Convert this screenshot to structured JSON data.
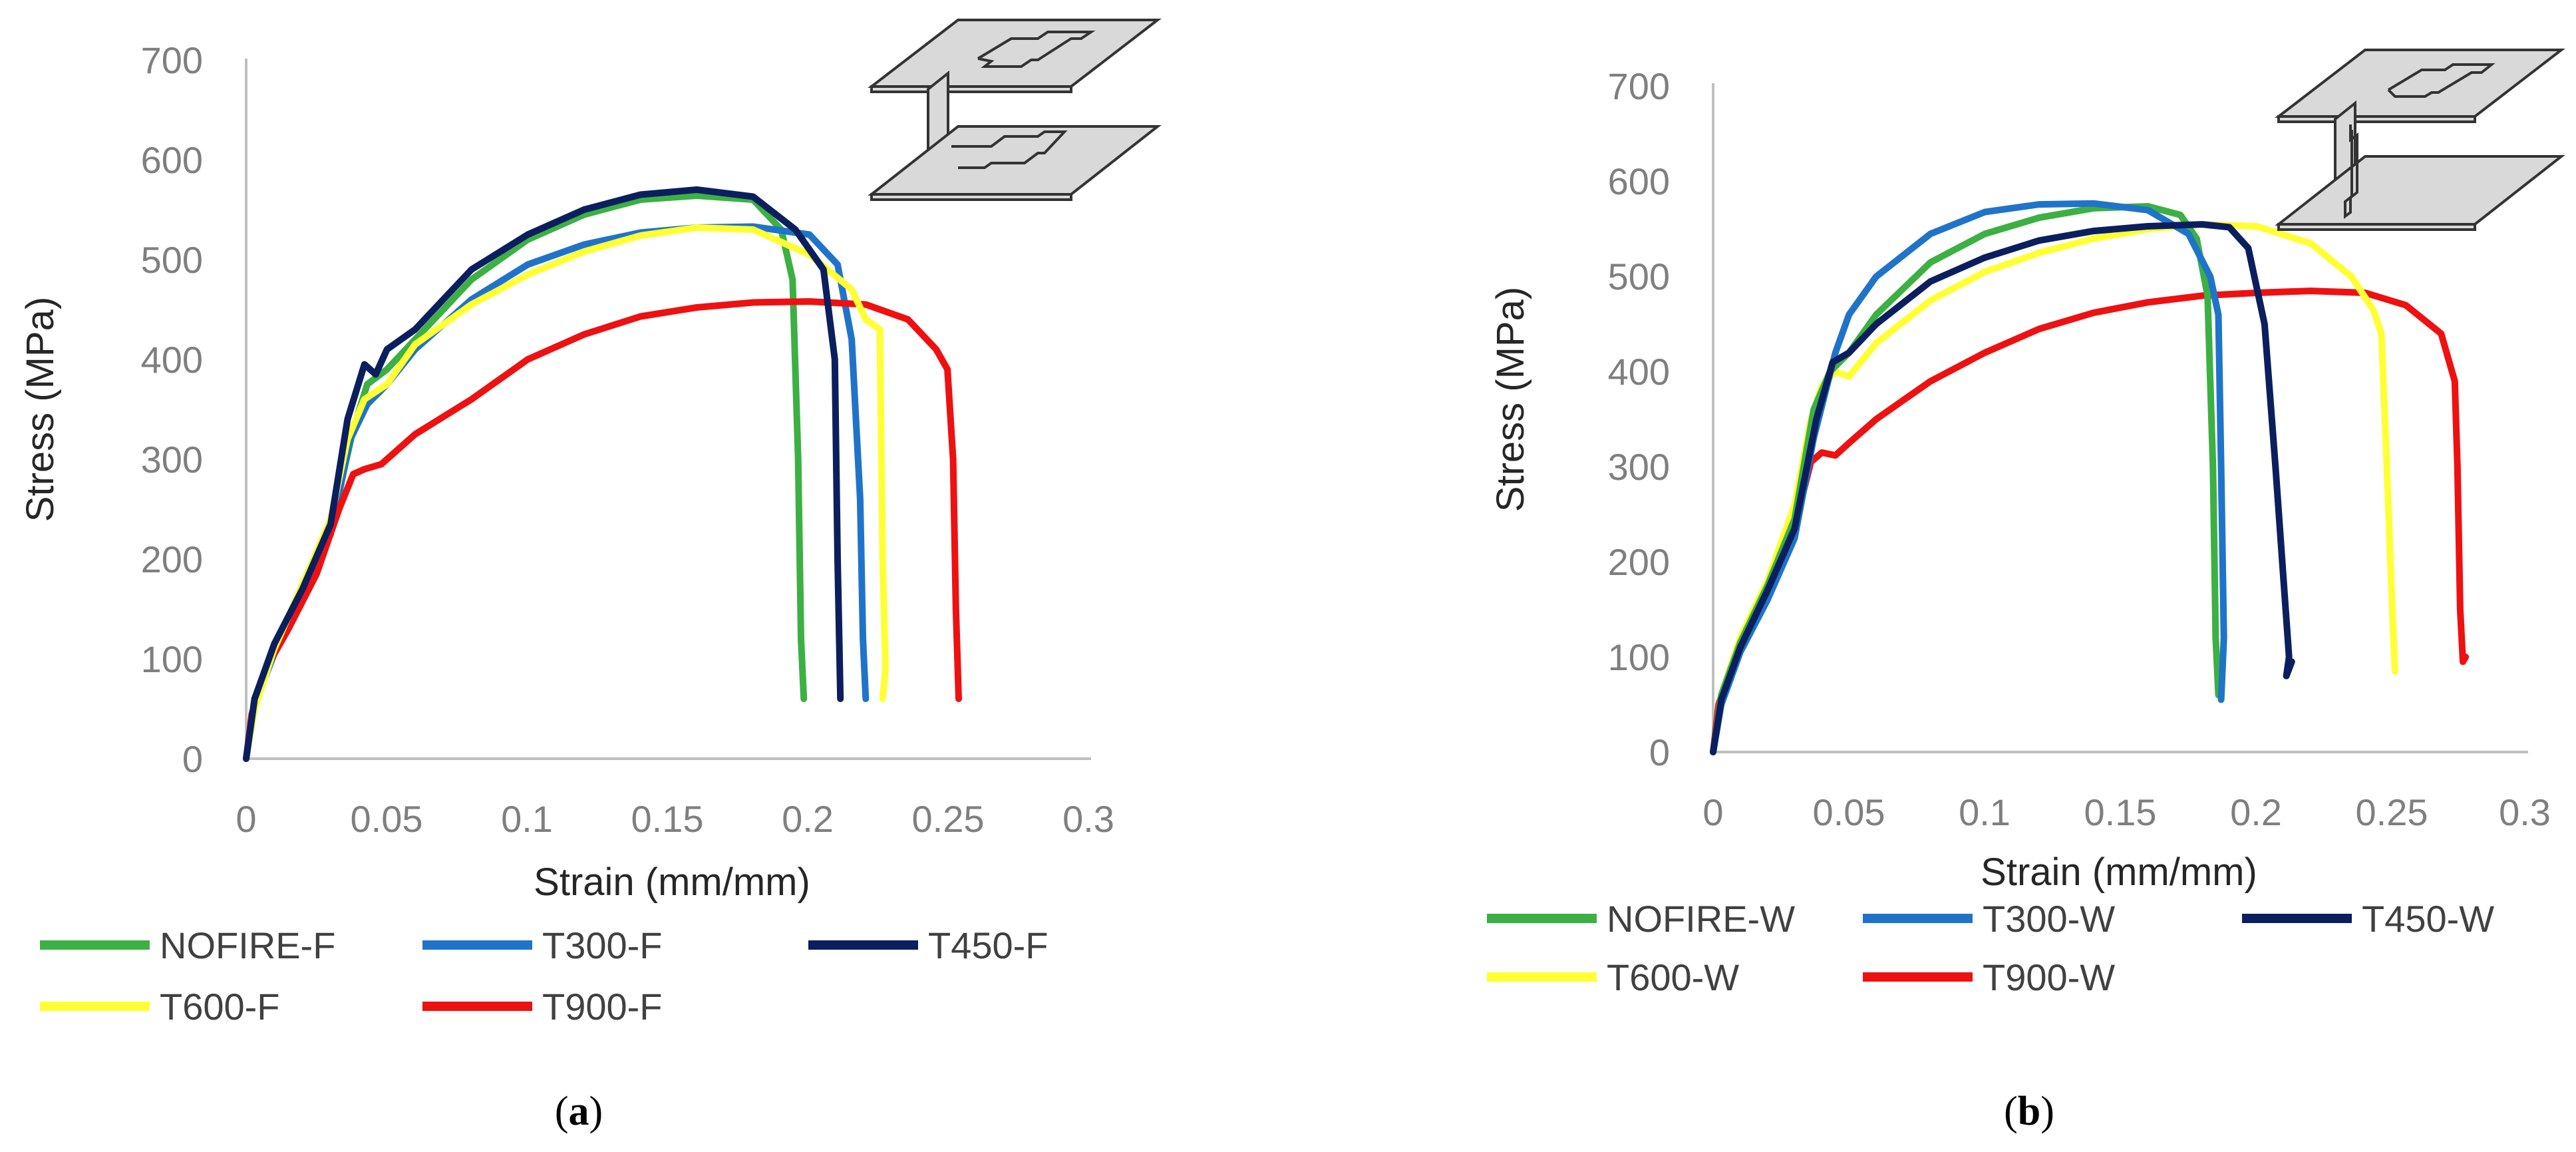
{
  "colors": {
    "NOFIRE": "#3cb043",
    "T300": "#1f74c9",
    "T450": "#0b1f5e",
    "T600": "#ffff33",
    "T900": "#ee1111",
    "axis": "#bfbfbf",
    "tick_text": "#7f7f7f"
  },
  "chart_data": [
    {
      "type": "line",
      "id": "a",
      "caption_letter": "a",
      "xlabel": "Strain (mm/mm)",
      "ylabel": "Stress (MPa)",
      "xlim": [
        0,
        0.3
      ],
      "ylim": [
        0,
        700
      ],
      "x_ticks": [
        0,
        0.05,
        0.1,
        0.15,
        0.2,
        0.25,
        0.3
      ],
      "y_ticks": [
        0,
        100,
        200,
        300,
        400,
        500,
        600,
        700
      ],
      "x_tick_labels": [
        "0",
        "0.05",
        "0.1",
        "0.15",
        "0.2",
        "0.25",
        "0.3"
      ],
      "y_tick_labels": [
        "0",
        "100",
        "200",
        "300",
        "400",
        "500",
        "600",
        "700"
      ],
      "legend_rows": [
        [
          "NOFIRE-F",
          "T300-F",
          "T450-F"
        ],
        [
          "T600-F",
          "T900-F"
        ]
      ],
      "series": [
        {
          "name": "NOFIRE-F",
          "color": "#3cb043",
          "points": [
            [
              0,
              0
            ],
            [
              0.003,
              60
            ],
            [
              0.01,
              110
            ],
            [
              0.02,
              170
            ],
            [
              0.03,
              230
            ],
            [
              0.038,
              330
            ],
            [
              0.043,
              375
            ],
            [
              0.05,
              390
            ],
            [
              0.06,
              420
            ],
            [
              0.08,
              480
            ],
            [
              0.1,
              520
            ],
            [
              0.12,
              545
            ],
            [
              0.14,
              560
            ],
            [
              0.16,
              564
            ],
            [
              0.18,
              560
            ],
            [
              0.19,
              530
            ],
            [
              0.194,
              480
            ],
            [
              0.196,
              300
            ],
            [
              0.197,
              120
            ],
            [
              0.198,
              60
            ]
          ]
        },
        {
          "name": "T300-F",
          "color": "#1f74c9",
          "points": [
            [
              0,
              0
            ],
            [
              0.003,
              55
            ],
            [
              0.01,
              105
            ],
            [
              0.02,
              165
            ],
            [
              0.03,
              225
            ],
            [
              0.037,
              320
            ],
            [
              0.043,
              355
            ],
            [
              0.05,
              375
            ],
            [
              0.06,
              410
            ],
            [
              0.08,
              460
            ],
            [
              0.1,
              495
            ],
            [
              0.12,
              515
            ],
            [
              0.14,
              527
            ],
            [
              0.16,
              532
            ],
            [
              0.18,
              533
            ],
            [
              0.2,
              525
            ],
            [
              0.21,
              495
            ],
            [
              0.215,
              420
            ],
            [
              0.218,
              260
            ],
            [
              0.219,
              120
            ],
            [
              0.22,
              60
            ]
          ]
        },
        {
          "name": "T450-F",
          "color": "#0b1f5e",
          "points": [
            [
              0,
              0
            ],
            [
              0.003,
              60
            ],
            [
              0.01,
              115
            ],
            [
              0.02,
              170
            ],
            [
              0.03,
              235
            ],
            [
              0.036,
              340
            ],
            [
              0.042,
              395
            ],
            [
              0.046,
              385
            ],
            [
              0.05,
              410
            ],
            [
              0.06,
              430
            ],
            [
              0.08,
              490
            ],
            [
              0.1,
              525
            ],
            [
              0.12,
              550
            ],
            [
              0.14,
              565
            ],
            [
              0.16,
              570
            ],
            [
              0.18,
              563
            ],
            [
              0.195,
              530
            ],
            [
              0.205,
              490
            ],
            [
              0.209,
              400
            ],
            [
              0.21,
              200
            ],
            [
              0.211,
              60
            ]
          ]
        },
        {
          "name": "T600-F",
          "color": "#ffff33",
          "points": [
            [
              0,
              0
            ],
            [
              0.003,
              50
            ],
            [
              0.01,
              110
            ],
            [
              0.02,
              175
            ],
            [
              0.03,
              240
            ],
            [
              0.036,
              320
            ],
            [
              0.042,
              360
            ],
            [
              0.05,
              375
            ],
            [
              0.06,
              415
            ],
            [
              0.08,
              455
            ],
            [
              0.1,
              485
            ],
            [
              0.12,
              508
            ],
            [
              0.14,
              524
            ],
            [
              0.16,
              532
            ],
            [
              0.18,
              530
            ],
            [
              0.2,
              505
            ],
            [
              0.215,
              470
            ],
            [
              0.22,
              440
            ],
            [
              0.225,
              430
            ],
            [
              0.226,
              200
            ],
            [
              0.227,
              90
            ],
            [
              0.226,
              60
            ]
          ]
        },
        {
          "name": "T900-F",
          "color": "#ee1111",
          "points": [
            [
              0,
              0
            ],
            [
              0.002,
              45
            ],
            [
              0.008,
              95
            ],
            [
              0.015,
              130
            ],
            [
              0.025,
              185
            ],
            [
              0.033,
              250
            ],
            [
              0.038,
              285
            ],
            [
              0.042,
              290
            ],
            [
              0.048,
              295
            ],
            [
              0.06,
              325
            ],
            [
              0.08,
              360
            ],
            [
              0.1,
              400
            ],
            [
              0.12,
              425
            ],
            [
              0.14,
              443
            ],
            [
              0.16,
              452
            ],
            [
              0.18,
              457
            ],
            [
              0.2,
              458
            ],
            [
              0.22,
              455
            ],
            [
              0.235,
              440
            ],
            [
              0.245,
              410
            ],
            [
              0.249,
              390
            ],
            [
              0.251,
              300
            ],
            [
              0.252,
              150
            ],
            [
              0.253,
              60
            ]
          ]
        }
      ]
    },
    {
      "type": "line",
      "id": "b",
      "caption_letter": "b",
      "xlabel": "Strain (mm/mm)",
      "ylabel": "Stress (MPa)",
      "xlim": [
        0,
        0.3
      ],
      "ylim": [
        0,
        700
      ],
      "x_ticks": [
        0,
        0.05,
        0.1,
        0.15,
        0.2,
        0.25,
        0.3
      ],
      "y_ticks": [
        0,
        100,
        200,
        300,
        400,
        500,
        600,
        700
      ],
      "x_tick_labels": [
        "0",
        "0.05",
        "0.1",
        "0.15",
        "0.2",
        "0.25",
        "0.3"
      ],
      "y_tick_labels": [
        "0",
        "100",
        "200",
        "300",
        "400",
        "500",
        "600",
        "700"
      ],
      "legend_rows": [
        [
          "NOFIRE-W",
          "T300-W",
          "T450-W"
        ],
        [
          "T600-W",
          "T900-W"
        ]
      ],
      "series": [
        {
          "name": "NOFIRE-W",
          "color": "#3cb043",
          "points": [
            [
              0,
              0
            ],
            [
              0.003,
              60
            ],
            [
              0.01,
              115
            ],
            [
              0.02,
              175
            ],
            [
              0.03,
              245
            ],
            [
              0.037,
              360
            ],
            [
              0.043,
              400
            ],
            [
              0.05,
              420
            ],
            [
              0.06,
              460
            ],
            [
              0.08,
              515
            ],
            [
              0.1,
              545
            ],
            [
              0.12,
              562
            ],
            [
              0.14,
              572
            ],
            [
              0.16,
              574
            ],
            [
              0.172,
              565
            ],
            [
              0.178,
              540
            ],
            [
              0.182,
              480
            ],
            [
              0.184,
              300
            ],
            [
              0.185,
              120
            ],
            [
              0.186,
              60
            ]
          ]
        },
        {
          "name": "T300-W",
          "color": "#1f74c9",
          "points": [
            [
              0,
              0
            ],
            [
              0.003,
              50
            ],
            [
              0.01,
              105
            ],
            [
              0.02,
              160
            ],
            [
              0.03,
              225
            ],
            [
              0.037,
              330
            ],
            [
              0.045,
              420
            ],
            [
              0.05,
              460
            ],
            [
              0.06,
              500
            ],
            [
              0.08,
              545
            ],
            [
              0.1,
              568
            ],
            [
              0.12,
              576
            ],
            [
              0.14,
              577
            ],
            [
              0.16,
              570
            ],
            [
              0.175,
              545
            ],
            [
              0.183,
              500
            ],
            [
              0.186,
              460
            ],
            [
              0.187,
              300
            ],
            [
              0.188,
              120
            ],
            [
              0.187,
              55
            ]
          ]
        },
        {
          "name": "T450-W",
          "color": "#0b1f5e",
          "points": [
            [
              0,
              0
            ],
            [
              0.003,
              55
            ],
            [
              0.01,
              110
            ],
            [
              0.02,
              170
            ],
            [
              0.03,
              235
            ],
            [
              0.038,
              350
            ],
            [
              0.044,
              410
            ],
            [
              0.05,
              420
            ],
            [
              0.06,
              450
            ],
            [
              0.08,
              495
            ],
            [
              0.1,
              520
            ],
            [
              0.12,
              538
            ],
            [
              0.14,
              548
            ],
            [
              0.16,
              553
            ],
            [
              0.18,
              555
            ],
            [
              0.19,
              552
            ],
            [
              0.197,
              530
            ],
            [
              0.203,
              450
            ],
            [
              0.207,
              300
            ],
            [
              0.21,
              180
            ],
            [
              0.212,
              100
            ],
            [
              0.211,
              80
            ],
            [
              0.213,
              95
            ]
          ]
        },
        {
          "name": "T600-W",
          "color": "#ffff33",
          "points": [
            [
              0,
              0
            ],
            [
              0.003,
              60
            ],
            [
              0.01,
              120
            ],
            [
              0.02,
              180
            ],
            [
              0.03,
              260
            ],
            [
              0.036,
              350
            ],
            [
              0.04,
              385
            ],
            [
              0.045,
              400
            ],
            [
              0.05,
              395
            ],
            [
              0.06,
              430
            ],
            [
              0.08,
              475
            ],
            [
              0.1,
              505
            ],
            [
              0.12,
              525
            ],
            [
              0.14,
              540
            ],
            [
              0.16,
              550
            ],
            [
              0.18,
              555
            ],
            [
              0.2,
              553
            ],
            [
              0.22,
              535
            ],
            [
              0.235,
              500
            ],
            [
              0.243,
              465
            ],
            [
              0.246,
              440
            ],
            [
              0.248,
              300
            ],
            [
              0.25,
              150
            ],
            [
              0.251,
              85
            ]
          ]
        },
        {
          "name": "T900-W",
          "color": "#ee1111",
          "points": [
            [
              0,
              0
            ],
            [
              0.002,
              50
            ],
            [
              0.008,
              100
            ],
            [
              0.015,
              140
            ],
            [
              0.025,
              200
            ],
            [
              0.032,
              260
            ],
            [
              0.036,
              305
            ],
            [
              0.04,
              315
            ],
            [
              0.045,
              312
            ],
            [
              0.05,
              325
            ],
            [
              0.06,
              350
            ],
            [
              0.07,
              370
            ],
            [
              0.08,
              390
            ],
            [
              0.1,
              420
            ],
            [
              0.12,
              445
            ],
            [
              0.14,
              462
            ],
            [
              0.16,
              473
            ],
            [
              0.18,
              480
            ],
            [
              0.2,
              483
            ],
            [
              0.22,
              485
            ],
            [
              0.24,
              483
            ],
            [
              0.255,
              470
            ],
            [
              0.268,
              440
            ],
            [
              0.273,
              390
            ],
            [
              0.274,
              300
            ],
            [
              0.275,
              150
            ],
            [
              0.276,
              95
            ],
            [
              0.277,
              100
            ]
          ]
        }
      ]
    }
  ]
}
